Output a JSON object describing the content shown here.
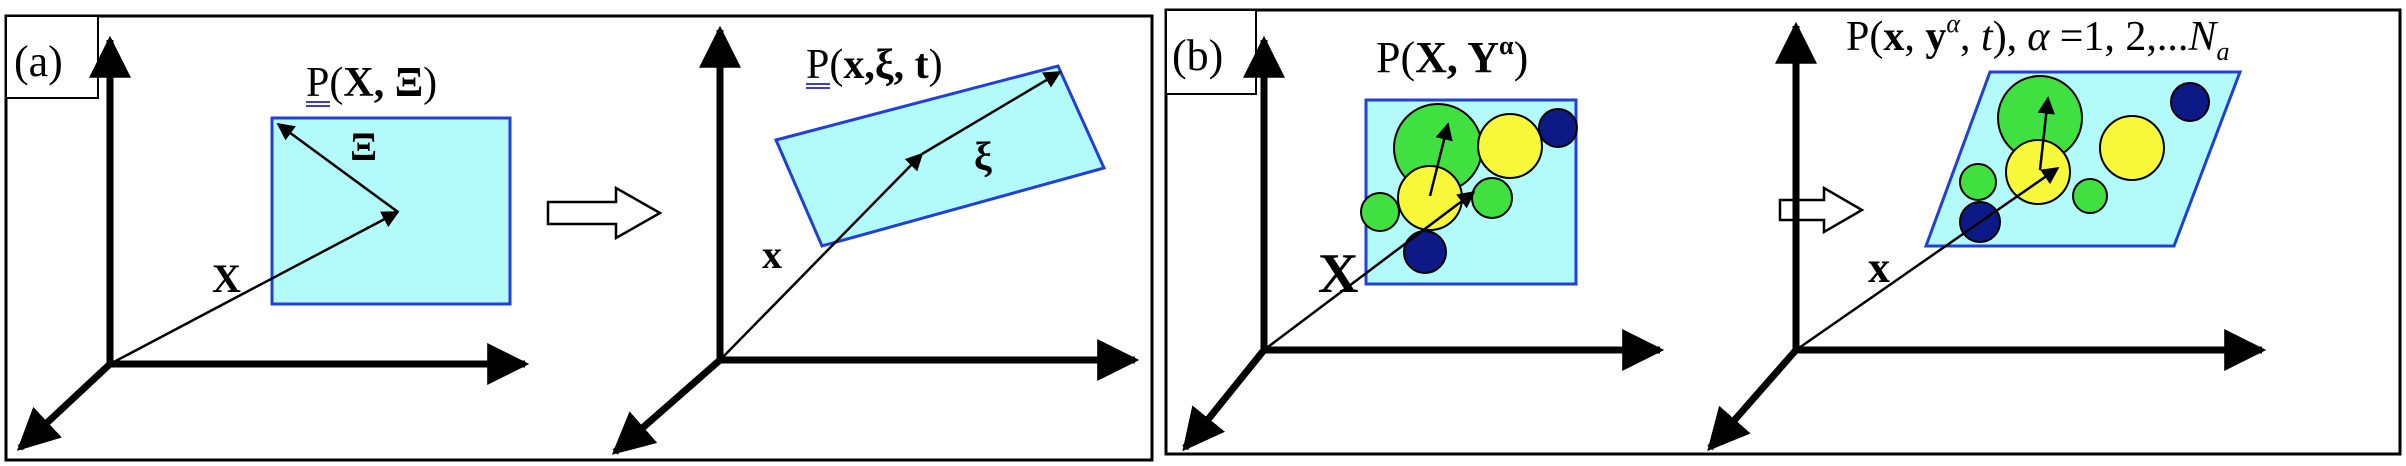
{
  "panel_a": {
    "tag": "(a)",
    "left_title": {
      "p": "P(",
      "bold": "X, Ξ",
      "close": ")"
    },
    "right_title": {
      "p": "P(",
      "bold": "x,ξ, t",
      "close": ")"
    },
    "vec_X": "X",
    "vec_Xi": "Ξ",
    "vec_x": "x",
    "vec_xi": "ξ"
  },
  "panel_b": {
    "tag": "(b)",
    "left_title": {
      "p": "P(",
      "bold": "X, Y",
      "sup": "α",
      "close": ")"
    },
    "right_title": {
      "p": "P(",
      "bold_x": "x",
      "sep1": ", ",
      "bold_y": "y",
      "sup": "α",
      "sep2": ", ",
      "t": "t",
      "close": "),",
      "alpha_eq": "α",
      "enum": " =1,  2,...",
      "N": "N",
      "N_sub": "a"
    },
    "vec_X": "X",
    "vec_x": "x"
  },
  "colors": {
    "line": "#000000",
    "box_fill": "#b3fbfb",
    "box_stroke": "#2140d8",
    "green": "#40e040",
    "yellow": "#f8f83a",
    "navy": "#0d1a86",
    "underline": "#3c3cc8"
  },
  "icons": [
    "right-arrow-icon"
  ]
}
